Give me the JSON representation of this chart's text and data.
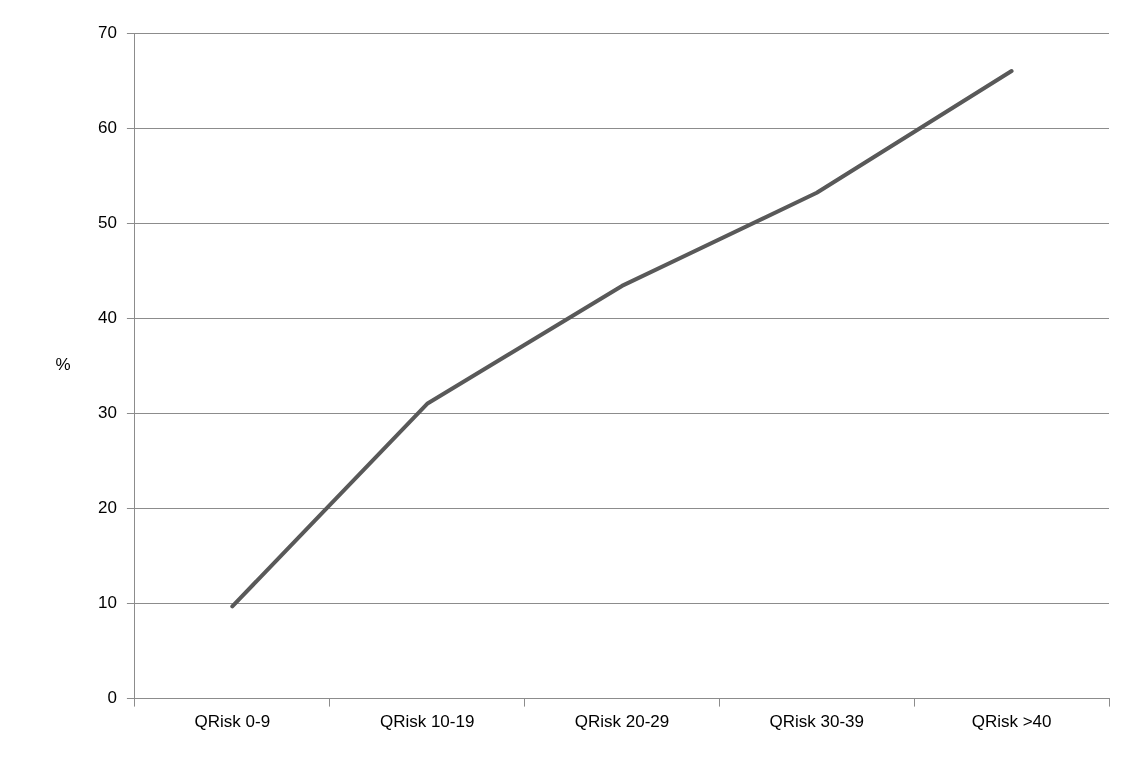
{
  "chart_data": {
    "type": "line",
    "ylabel": "%",
    "categories": [
      "QRisk 0-9",
      "QRisk 10-19",
      "QRisk 20-29",
      "QRisk 30-39",
      "QRisk >40"
    ],
    "series": [
      {
        "color": "#595959",
        "values": [
          9.7,
          31.0,
          43.4,
          53.2,
          66.0
        ]
      }
    ],
    "ylim": [
      0,
      70
    ],
    "yticks": [
      0,
      10,
      20,
      30,
      40,
      50,
      60,
      70
    ],
    "grid": "y",
    "legend": false,
    "marker": "none",
    "line_style": "solid"
  }
}
